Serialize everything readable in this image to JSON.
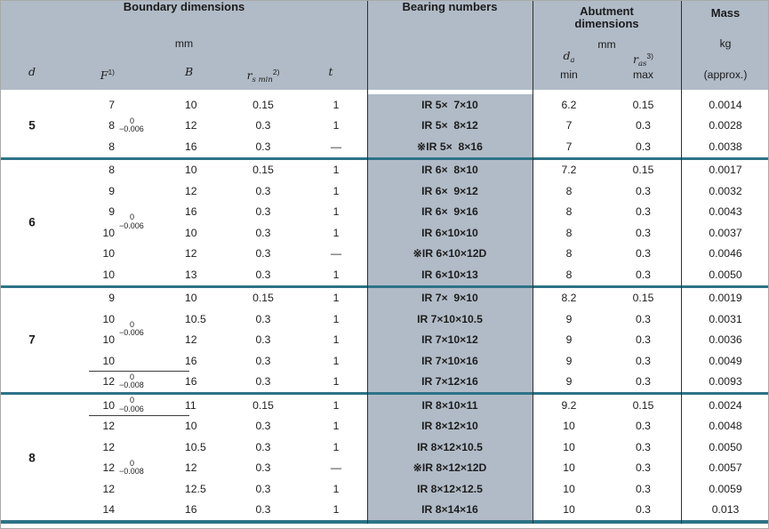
{
  "table": {
    "header": {
      "boundary_title": "Boundary dimensions",
      "boundary_unit": "mm",
      "col_d": "d",
      "col_f": "F",
      "col_f_sup": "1)",
      "col_b": "B",
      "col_r": "r",
      "col_r_sub": "s min",
      "col_r_sup": "2)",
      "col_t": "t",
      "bearing_title": "Bearing numbers",
      "abutment_title_1": "Abutment",
      "abutment_title_2": "dimensions",
      "abutment_unit": "mm",
      "da_sym": "d",
      "da_sub": "a",
      "da_limit": "min",
      "ras_sym": "r",
      "ras_sub": "as",
      "ras_sup": "3)",
      "ras_limit": "max",
      "mass_title": "Mass",
      "mass_unit": "kg",
      "mass_approx": "(approx.)"
    },
    "groups": [
      {
        "d": "5",
        "rows": [
          {
            "f": "7",
            "b": "10",
            "r": "0.15",
            "t": "1",
            "bearing": "IR 5×  7×10",
            "da": "6.2",
            "ras": "0.15",
            "mass": "0.0014"
          },
          {
            "f": "8",
            "tol": {
              "top": "0",
              "bot": "−0.006",
              "raise": false
            },
            "b": "12",
            "r": "0.3",
            "t": "1",
            "bearing": "IR 5×  8×12",
            "da": "7",
            "ras": "0.3",
            "mass": "0.0028"
          },
          {
            "f": "8",
            "b": "16",
            "r": "0.3",
            "t": "—",
            "bearing": "※IR 5×  8×16",
            "da": "7",
            "ras": "0.3",
            "mass": "0.0038"
          }
        ]
      },
      {
        "d": "6",
        "rows": [
          {
            "f": "8",
            "b": "10",
            "r": "0.15",
            "t": "1",
            "bearing": "IR 6×  8×10",
            "da": "7.2",
            "ras": "0.15",
            "mass": "0.0017"
          },
          {
            "f": "9",
            "b": "12",
            "r": "0.3",
            "t": "1",
            "bearing": "IR 6×  9×12",
            "da": "8",
            "ras": "0.3",
            "mass": "0.0032"
          },
          {
            "f": "9",
            "b": "16",
            "r": "0.3",
            "t": "1",
            "bearing": "IR 6×  9×16",
            "da": "8",
            "ras": "0.3",
            "mass": "0.0043"
          },
          {
            "f": "10",
            "tol": {
              "top": "0",
              "bot": "−0.006",
              "raise": true
            },
            "b": "10",
            "r": "0.3",
            "t": "1",
            "bearing": "IR 6×10×10",
            "da": "8",
            "ras": "0.3",
            "mass": "0.0037"
          },
          {
            "f": "10",
            "b": "12",
            "r": "0.3",
            "t": "—",
            "bearing": "※IR 6×10×12D",
            "da": "8",
            "ras": "0.3",
            "mass": "0.0046"
          },
          {
            "f": "10",
            "b": "13",
            "r": "0.3",
            "t": "1",
            "bearing": "IR 6×10×13",
            "da": "8",
            "ras": "0.3",
            "mass": "0.0050"
          }
        ]
      },
      {
        "d": "7",
        "rows": [
          {
            "f": "9",
            "b": "10",
            "r": "0.15",
            "t": "1",
            "bearing": "IR 7×  9×10",
            "da": "8.2",
            "ras": "0.15",
            "mass": "0.0019"
          },
          {
            "f": "10",
            "b": "10.5",
            "r": "0.3",
            "t": "1",
            "bearing": "IR 7×10×10.5",
            "da": "9",
            "ras": "0.3",
            "mass": "0.0031"
          },
          {
            "f": "10",
            "tol": {
              "top": "0",
              "bot": "−0.006",
              "raise": true
            },
            "b": "12",
            "r": "0.3",
            "t": "1",
            "bearing": "IR 7×10×12",
            "da": "9",
            "ras": "0.3",
            "mass": "0.0036"
          },
          {
            "f": "10",
            "fline": true,
            "b": "16",
            "r": "0.3",
            "t": "1",
            "bearing": "IR 7×10×16",
            "da": "9",
            "ras": "0.3",
            "mass": "0.0049"
          },
          {
            "f": "12",
            "tol": {
              "top": "0",
              "bot": "−0.008",
              "raise": false
            },
            "b": "16",
            "r": "0.3",
            "t": "1",
            "bearing": "IR 7×12×16",
            "da": "9",
            "ras": "0.3",
            "mass": "0.0093"
          }
        ]
      },
      {
        "d": "8",
        "rows": [
          {
            "f": "10",
            "tol": {
              "top": "0",
              "bot": "−0.006",
              "raise": false
            },
            "fline": true,
            "b": "11",
            "r": "0.15",
            "t": "1",
            "bearing": "IR 8×10×11",
            "da": "9.2",
            "ras": "0.15",
            "mass": "0.0024"
          },
          {
            "f": "12",
            "b": "10",
            "r": "0.3",
            "t": "1",
            "bearing": "IR 8×12×10",
            "da": "10",
            "ras": "0.3",
            "mass": "0.0048"
          },
          {
            "f": "12",
            "b": "10.5",
            "r": "0.3",
            "t": "1",
            "bearing": "IR 8×12×10.5",
            "da": "10",
            "ras": "0.3",
            "mass": "0.0050"
          },
          {
            "f": "12",
            "tol": {
              "top": "0",
              "bot": "−0.008",
              "raise": false
            },
            "b": "12",
            "r": "0.3",
            "t": "—",
            "bearing": "※IR 8×12×12D",
            "da": "10",
            "ras": "0.3",
            "mass": "0.0057"
          },
          {
            "f": "12",
            "b": "12.5",
            "r": "0.3",
            "t": "1",
            "bearing": "IR 8×12×12.5",
            "da": "10",
            "ras": "0.3",
            "mass": "0.0059"
          },
          {
            "f": "14",
            "b": "16",
            "r": "0.3",
            "t": "1",
            "bearing": "IR 8×14×16",
            "da": "10",
            "ras": "0.3",
            "mass": "0.013"
          }
        ]
      }
    ],
    "colors": {
      "panel": "#b1bbc7",
      "separator": "#2d7387"
    }
  }
}
